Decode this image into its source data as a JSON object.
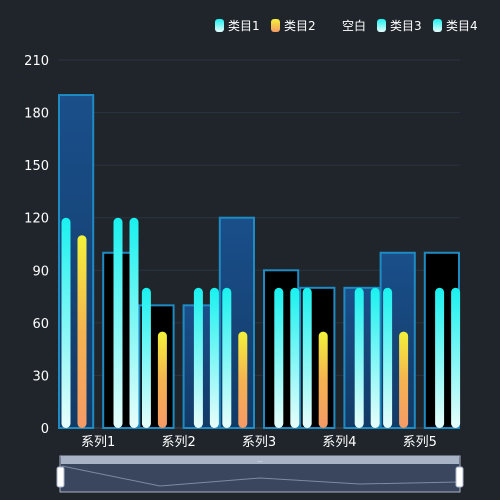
{
  "chart_data": {
    "type": "bar",
    "categories": [
      "系列1",
      "系列2",
      "系列3",
      "系列4",
      "系列5"
    ],
    "ylim": [
      0,
      210
    ],
    "yticks": [
      0,
      30,
      60,
      90,
      120,
      150,
      180,
      210
    ],
    "grid": true,
    "legend_position": "top-right",
    "legend": [
      "类目1",
      "类目2",
      "空白",
      "类目3",
      "类目4"
    ],
    "background_boxes": [
      {
        "left": 190,
        "right": 100
      },
      {
        "left": 70,
        "right": 70
      },
      {
        "left": 120,
        "right": 90
      },
      {
        "left": 80,
        "right": 80
      },
      {
        "left": 100,
        "right": 100
      }
    ],
    "series": [
      {
        "name": "类目1",
        "values": [
          120,
          80,
          80,
          80,
          80
        ]
      },
      {
        "name": "类目2",
        "values": [
          110,
          55,
          55,
          55,
          55
        ]
      },
      {
        "name": "类目3",
        "values": [
          120,
          80,
          80,
          80,
          80
        ]
      },
      {
        "name": "类目4",
        "values": [
          120,
          80,
          80,
          80,
          80
        ]
      }
    ],
    "colors": {
      "cyan_top": "#19f1ef",
      "cyan_bottom": "#e8fdfb",
      "yellow_top": "#f2f23a",
      "orange_bottom": "#f59a66",
      "box_blue_top": "#1a4f8a",
      "box_blue_bottom": "#123a66",
      "box_dark": "#000000",
      "box_stroke": "#1e8bc3",
      "background": "#20252c"
    },
    "datazoom": {
      "handle_label": "..."
    }
  }
}
